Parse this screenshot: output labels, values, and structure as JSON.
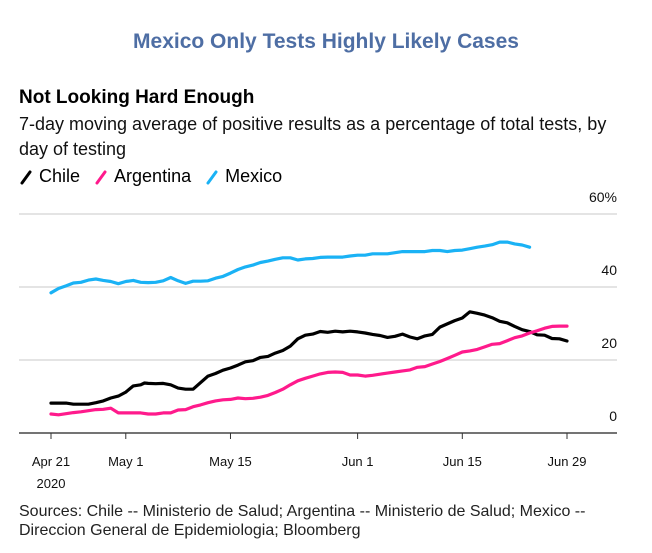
{
  "page_title": "Mexico Only Tests Highly Likely Cases",
  "chart_data": {
    "type": "line",
    "title": "Not Looking Hard Enough",
    "subtitle": "7-day moving average of positive results as a percentage of total tests, by day of testing",
    "xlabel": "",
    "ylabel": "",
    "x_start_date": "2020-04-21",
    "x_unit": "days since Apr 21, 2020",
    "xlim": [
      0,
      69
    ],
    "ylim": [
      0,
      60
    ],
    "y_ticks": [
      {
        "value": 0,
        "label": "0"
      },
      {
        "value": 20,
        "label": "20"
      },
      {
        "value": 40,
        "label": "40"
      },
      {
        "value": 60,
        "label": "60%"
      }
    ],
    "x_ticks": [
      {
        "day": 0,
        "label": "Apr 21",
        "sublabel": "2020"
      },
      {
        "day": 10,
        "label": "May 1",
        "sublabel": ""
      },
      {
        "day": 24,
        "label": "May 15",
        "sublabel": ""
      },
      {
        "day": 41,
        "label": "Jun 1",
        "sublabel": ""
      },
      {
        "day": 55,
        "label": "Jun 15",
        "sublabel": ""
      },
      {
        "day": 69,
        "label": "Jun 29",
        "sublabel": ""
      }
    ],
    "grid": true,
    "legend_position": "top-left",
    "series": [
      {
        "name": "Chile",
        "color": "#000000",
        "points": [
          [
            0,
            8.2
          ],
          [
            2,
            8.2
          ],
          [
            3,
            7.9
          ],
          [
            5,
            7.9
          ],
          [
            6,
            8.3
          ],
          [
            7,
            8.8
          ],
          [
            8,
            9.6
          ],
          [
            9,
            10.1
          ],
          [
            10,
            11.2
          ],
          [
            11,
            12.9
          ],
          [
            12,
            13.2
          ],
          [
            12.5,
            13.7
          ],
          [
            13,
            13.6
          ],
          [
            14,
            13.5
          ],
          [
            15,
            13.6
          ],
          [
            16,
            13.2
          ],
          [
            17,
            12.3
          ],
          [
            18,
            12.0
          ],
          [
            19,
            12.0
          ],
          [
            20,
            13.8
          ],
          [
            21,
            15.6
          ],
          [
            22,
            16.3
          ],
          [
            23,
            17.2
          ],
          [
            24,
            17.8
          ],
          [
            25,
            18.6
          ],
          [
            26,
            19.5
          ],
          [
            27,
            19.8
          ],
          [
            28,
            20.7
          ],
          [
            29,
            21.0
          ],
          [
            30,
            21.9
          ],
          [
            31,
            22.6
          ],
          [
            32,
            23.8
          ],
          [
            33,
            25.8
          ],
          [
            34,
            26.8
          ],
          [
            35,
            27.1
          ],
          [
            36,
            27.8
          ],
          [
            37,
            27.6
          ],
          [
            38,
            27.9
          ],
          [
            39,
            27.7
          ],
          [
            40,
            27.9
          ],
          [
            41,
            27.7
          ],
          [
            42,
            27.4
          ],
          [
            43,
            27.0
          ],
          [
            44,
            26.7
          ],
          [
            45,
            26.2
          ],
          [
            46,
            26.5
          ],
          [
            47,
            27.1
          ],
          [
            48,
            26.3
          ],
          [
            49,
            25.8
          ],
          [
            50,
            26.6
          ],
          [
            51,
            27.0
          ],
          [
            52,
            29.0
          ],
          [
            53,
            29.9
          ],
          [
            54,
            30.8
          ],
          [
            55,
            31.5
          ],
          [
            56,
            33.2
          ],
          [
            57,
            32.8
          ],
          [
            58,
            32.3
          ],
          [
            59,
            31.6
          ],
          [
            60,
            30.6
          ],
          [
            61,
            30.2
          ],
          [
            62,
            29.2
          ],
          [
            63,
            28.3
          ],
          [
            64,
            27.8
          ],
          [
            65,
            26.9
          ],
          [
            66,
            26.8
          ],
          [
            67,
            25.9
          ],
          [
            68,
            25.8
          ],
          [
            69,
            25.2
          ]
        ]
      },
      {
        "name": "Argentina",
        "color": "#ff1a8c",
        "points": [
          [
            0,
            5.2
          ],
          [
            1,
            5.0
          ],
          [
            2,
            5.3
          ],
          [
            3,
            5.6
          ],
          [
            4,
            5.8
          ],
          [
            5,
            6.1
          ],
          [
            6,
            6.4
          ],
          [
            7,
            6.5
          ],
          [
            8,
            6.8
          ],
          [
            9,
            5.5
          ],
          [
            10,
            5.5
          ],
          [
            11,
            5.5
          ],
          [
            12,
            5.5
          ],
          [
            13,
            5.2
          ],
          [
            14,
            5.2
          ],
          [
            15,
            5.5
          ],
          [
            16,
            5.5
          ],
          [
            17,
            6.3
          ],
          [
            18,
            6.4
          ],
          [
            19,
            7.2
          ],
          [
            20,
            7.7
          ],
          [
            21,
            8.3
          ],
          [
            22,
            8.8
          ],
          [
            23,
            9.1
          ],
          [
            24,
            9.2
          ],
          [
            25,
            9.6
          ],
          [
            26,
            9.4
          ],
          [
            27,
            9.5
          ],
          [
            28,
            9.8
          ],
          [
            29,
            10.3
          ],
          [
            30,
            11.1
          ],
          [
            31,
            12.0
          ],
          [
            32,
            13.2
          ],
          [
            33,
            14.3
          ],
          [
            34,
            15.0
          ],
          [
            35,
            15.6
          ],
          [
            36,
            16.2
          ],
          [
            37,
            16.6
          ],
          [
            38,
            16.7
          ],
          [
            39,
            16.6
          ],
          [
            40,
            15.9
          ],
          [
            41,
            15.9
          ],
          [
            42,
            15.6
          ],
          [
            43,
            15.8
          ],
          [
            44,
            16.1
          ],
          [
            45,
            16.4
          ],
          [
            46,
            16.7
          ],
          [
            47,
            17.0
          ],
          [
            48,
            17.3
          ],
          [
            49,
            18.0
          ],
          [
            50,
            18.2
          ],
          [
            51,
            18.9
          ],
          [
            52,
            19.6
          ],
          [
            53,
            20.4
          ],
          [
            54,
            21.3
          ],
          [
            55,
            22.2
          ],
          [
            56,
            22.5
          ],
          [
            57,
            22.9
          ],
          [
            58,
            23.6
          ],
          [
            59,
            24.3
          ],
          [
            60,
            24.5
          ],
          [
            61,
            25.3
          ],
          [
            62,
            26.1
          ],
          [
            63,
            26.6
          ],
          [
            64,
            27.4
          ],
          [
            65,
            28.0
          ],
          [
            66,
            28.7
          ],
          [
            67,
            29.2
          ],
          [
            68,
            29.3
          ],
          [
            69,
            29.3
          ]
        ]
      },
      {
        "name": "Mexico",
        "color": "#1ab2f5",
        "points": [
          [
            0,
            38.4
          ],
          [
            1,
            39.6
          ],
          [
            2,
            40.3
          ],
          [
            3,
            41.1
          ],
          [
            4,
            41.3
          ],
          [
            5,
            41.9
          ],
          [
            6,
            42.2
          ],
          [
            7,
            41.8
          ],
          [
            8,
            41.5
          ],
          [
            9,
            40.9
          ],
          [
            10,
            41.5
          ],
          [
            11,
            41.8
          ],
          [
            12,
            41.3
          ],
          [
            13,
            41.2
          ],
          [
            14,
            41.3
          ],
          [
            15,
            41.7
          ],
          [
            16,
            42.6
          ],
          [
            17,
            41.7
          ],
          [
            18,
            41.0
          ],
          [
            19,
            41.6
          ],
          [
            20,
            41.6
          ],
          [
            21,
            41.7
          ],
          [
            22,
            42.4
          ],
          [
            23,
            42.9
          ],
          [
            24,
            43.8
          ],
          [
            25,
            44.8
          ],
          [
            26,
            45.5
          ],
          [
            27,
            46.0
          ],
          [
            28,
            46.7
          ],
          [
            29,
            47.1
          ],
          [
            30,
            47.6
          ],
          [
            31,
            48.0
          ],
          [
            32,
            48.0
          ],
          [
            33,
            47.4
          ],
          [
            34,
            47.7
          ],
          [
            35,
            47.8
          ],
          [
            36,
            48.1
          ],
          [
            37,
            48.2
          ],
          [
            38,
            48.2
          ],
          [
            39,
            48.2
          ],
          [
            40,
            48.5
          ],
          [
            41,
            48.7
          ],
          [
            42,
            48.7
          ],
          [
            43,
            49.1
          ],
          [
            44,
            49.1
          ],
          [
            45,
            49.1
          ],
          [
            46,
            49.4
          ],
          [
            47,
            49.7
          ],
          [
            48,
            49.7
          ],
          [
            49,
            49.7
          ],
          [
            50,
            49.7
          ],
          [
            51,
            50.0
          ],
          [
            52,
            50.0
          ],
          [
            53,
            49.7
          ],
          [
            54,
            50.0
          ],
          [
            55,
            50.1
          ],
          [
            56,
            50.5
          ],
          [
            57,
            50.9
          ],
          [
            58,
            51.2
          ],
          [
            59,
            51.6
          ],
          [
            60,
            52.3
          ],
          [
            61,
            52.3
          ],
          [
            62,
            51.8
          ],
          [
            63,
            51.5
          ],
          [
            64,
            50.9
          ]
        ]
      }
    ],
    "source": "Sources: Chile -- Ministerio de Salud; Argentina -- Ministerio de Salud; Mexico -- Direccion General de Epidemiologia; Bloomberg"
  }
}
